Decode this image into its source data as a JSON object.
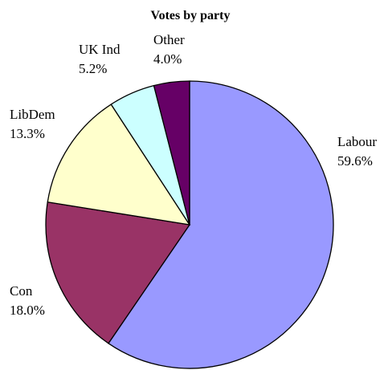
{
  "chart_data": {
    "type": "pie",
    "title": "Votes by party",
    "slices": [
      {
        "label": "Labour",
        "value": 59.6,
        "display": "59.6%",
        "color": "#9999ff"
      },
      {
        "label": "Con",
        "value": 18.0,
        "display": "18.0%",
        "color": "#993366"
      },
      {
        "label": "LibDem",
        "value": 13.3,
        "display": "13.3%",
        "color": "#ffffcc"
      },
      {
        "label": "UK Ind",
        "value": 5.2,
        "display": "5.2%",
        "color": "#ccffff"
      },
      {
        "label": "Other",
        "value": 4.0,
        "display": "4.0%",
        "color": "#660066"
      }
    ],
    "start": "12 o'clock",
    "direction": "clockwise",
    "legend": "none",
    "labels": "outside, name above percentage"
  }
}
